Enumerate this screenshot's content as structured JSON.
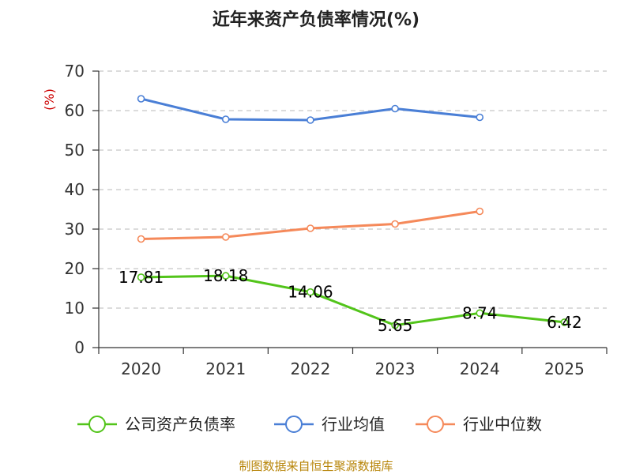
{
  "chart_data": {
    "type": "line",
    "title": "近年来资产负债率情况(%)",
    "ylabel": "(%)",
    "xlabel": "",
    "categories": [
      "2020",
      "2021",
      "2022",
      "2023",
      "2024",
      "2025"
    ],
    "ylim": [
      0,
      70
    ],
    "yticks": [
      0,
      10,
      20,
      30,
      40,
      50,
      60,
      70
    ],
    "grid": true,
    "legend_position": "bottom",
    "series": [
      {
        "name": "公司资产负债率",
        "color": "#52c41a",
        "values": [
          17.81,
          18.18,
          14.06,
          5.65,
          8.74,
          6.42
        ],
        "labels": [
          "17.81",
          "18.18",
          "14.06",
          "5.65",
          "8.74",
          "6.42"
        ],
        "show_labels": true
      },
      {
        "name": "行业均值",
        "color": "#4a7fd6",
        "values": [
          63.0,
          57.8,
          57.6,
          60.5,
          58.3,
          null
        ],
        "show_labels": false
      },
      {
        "name": "行业中位数",
        "color": "#f5895a",
        "values": [
          27.5,
          28.0,
          30.2,
          31.3,
          34.5,
          null
        ],
        "show_labels": false
      }
    ],
    "source": "制图数据来自恒生聚源数据库"
  }
}
